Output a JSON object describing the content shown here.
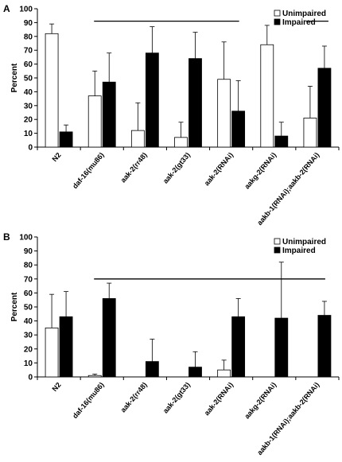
{
  "colors": {
    "unimpaired": "#ffffff",
    "impaired": "#000000",
    "axis": "#000000"
  },
  "chart_data": [
    {
      "panel_label": "A",
      "type": "bar",
      "ylabel": "Percent",
      "ylim": [
        0,
        100
      ],
      "yticks": [
        0,
        10,
        20,
        30,
        40,
        50,
        60,
        70,
        80,
        90,
        100
      ],
      "grid": false,
      "legend_position": "top-right",
      "categories": [
        "N2",
        "daf-16(mu86)",
        "aak-2(rr48)",
        "aak-2(gt33)",
        "aak-2(RNAi)",
        "aakg-2(RNAi)",
        "aakb-1(RNAi);aakb-2(RNAi)"
      ],
      "series": [
        {
          "name": "Unimpaired",
          "values": [
            82,
            37,
            12,
            7,
            49,
            74,
            21
          ],
          "errors": [
            7,
            18,
            20,
            11,
            27,
            14,
            23
          ]
        },
        {
          "name": "Impaired",
          "values": [
            11,
            47,
            68,
            64,
            26,
            8,
            57
          ],
          "errors": [
            5,
            21,
            19,
            19,
            22,
            10,
            16
          ]
        }
      ],
      "significance_lines": [
        {
          "from": "daf-16(mu86)",
          "to": "aak-2(RNAi)",
          "y": 91
        },
        {
          "from": "aakb-1(RNAi);aakb-2(RNAi)",
          "to": "aakb-1(RNAi);aakb-2(RNAi)",
          "y": 91
        }
      ]
    },
    {
      "panel_label": "B",
      "type": "bar",
      "ylabel": "Percent",
      "ylim": [
        0,
        100
      ],
      "yticks": [
        0,
        10,
        20,
        30,
        40,
        50,
        60,
        70,
        80,
        90,
        100
      ],
      "grid": false,
      "legend_position": "top-right",
      "categories": [
        "N2",
        "daf-16(mu86)",
        "aak-2(rr48)",
        "aak-2(gt33)",
        "aak-2(RNAi)",
        "aakg-2(RNAi)",
        "aakb-1(RNAi);aakb-2(RNAi)"
      ],
      "series": [
        {
          "name": "Unimpaired",
          "values": [
            35,
            1,
            0,
            0,
            5,
            0,
            0
          ],
          "errors": [
            24,
            1,
            0,
            0,
            7,
            0,
            0
          ]
        },
        {
          "name": "Impaired",
          "values": [
            43,
            56,
            11,
            7,
            43,
            42,
            44
          ],
          "errors": [
            18,
            11,
            16,
            11,
            13,
            40,
            10
          ]
        }
      ],
      "significance_lines": [
        {
          "from": "daf-16(mu86)",
          "to": "aakb-1(RNAi);aakb-2(RNAi)",
          "y": 70
        }
      ]
    }
  ]
}
